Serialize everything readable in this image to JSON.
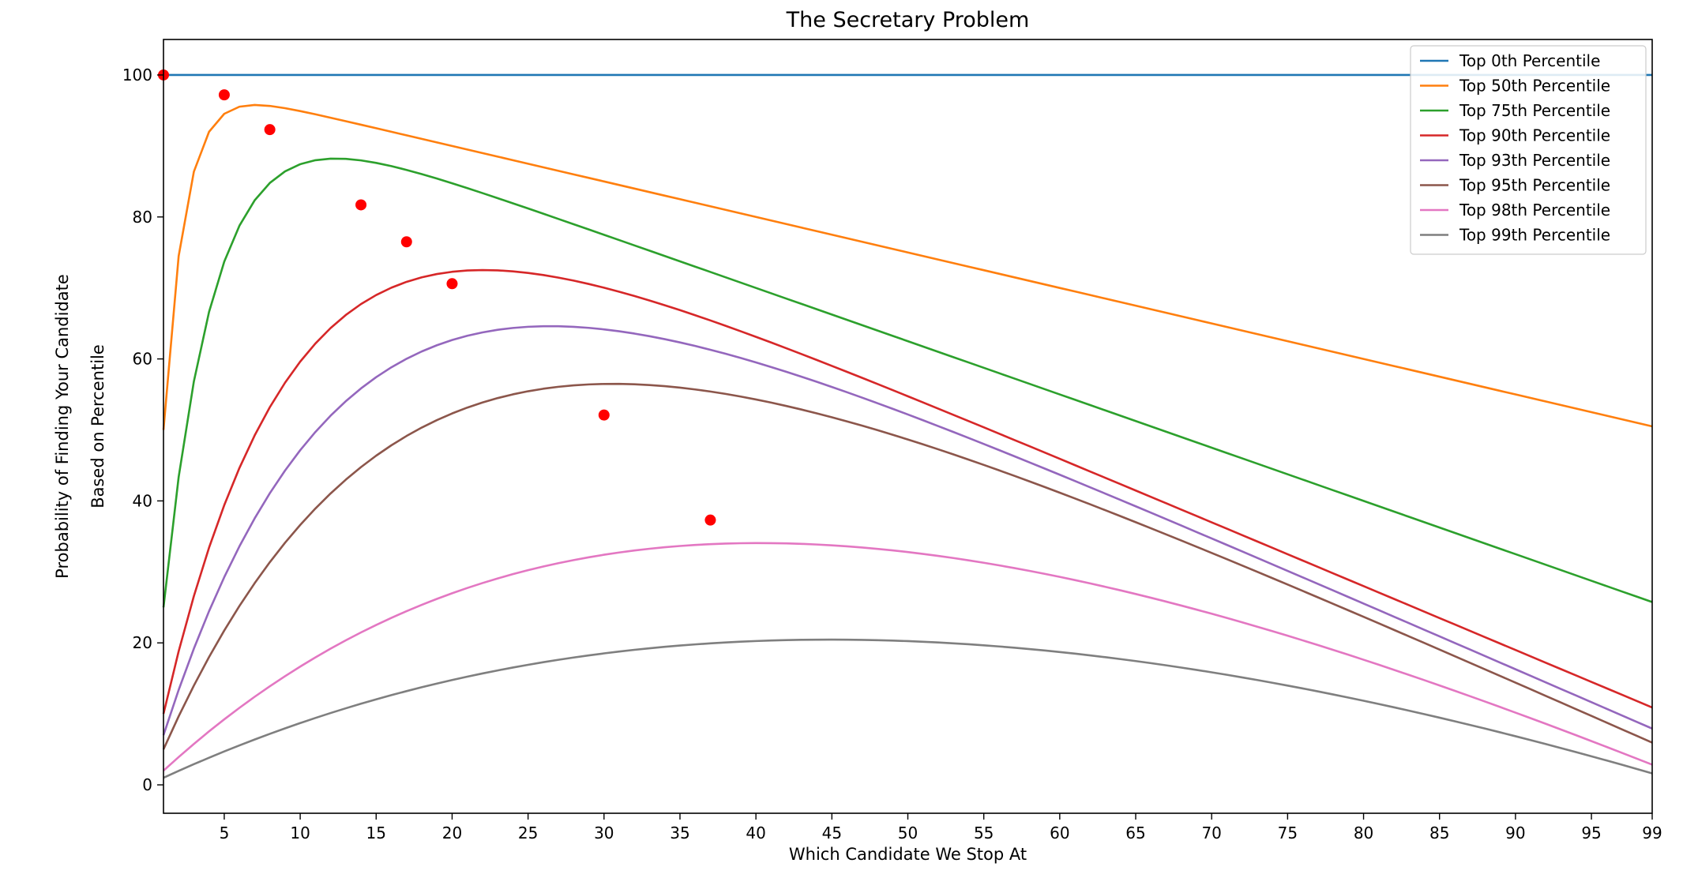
{
  "chart_data": {
    "type": "line",
    "title": "The Secretary Problem",
    "xlabel": "Which Candidate We Stop At",
    "ylabel_lines": [
      "Probability of Finding Your Candidate",
      "Based on Percentile"
    ],
    "xlim": [
      1,
      99
    ],
    "ylim": [
      -4,
      105
    ],
    "xticks": [
      5,
      10,
      15,
      20,
      25,
      30,
      35,
      40,
      45,
      50,
      55,
      60,
      65,
      70,
      75,
      80,
      85,
      90,
      95,
      99
    ],
    "yticks": [
      0,
      20,
      40,
      60,
      80,
      100
    ],
    "grid": false,
    "legend_position": "top-right",
    "series": [
      {
        "name": "Top 0th Percentile",
        "color": "#1f77b4",
        "p": 0.0,
        "peak": {
          "x": 1,
          "y": 100.0
        }
      },
      {
        "name": "Top 50th Percentile",
        "color": "#ff7f0e",
        "p": 0.5,
        "peak": {
          "x": 5,
          "y": 97.2
        }
      },
      {
        "name": "Top 75th Percentile",
        "color": "#2ca02c",
        "p": 0.75,
        "peak": {
          "x": 8,
          "y": 92.3
        }
      },
      {
        "name": "Top 90th Percentile",
        "color": "#d62728",
        "p": 0.9,
        "peak": {
          "x": 14,
          "y": 81.7
        }
      },
      {
        "name": "Top 93th Percentile",
        "color": "#9467bd",
        "p": 0.93,
        "peak": {
          "x": 17,
          "y": 76.5
        }
      },
      {
        "name": "Top 95th Percentile",
        "color": "#8c564b",
        "p": 0.95,
        "peak": {
          "x": 20,
          "y": 70.6
        }
      },
      {
        "name": "Top 98th Percentile",
        "color": "#e377c2",
        "p": 0.98,
        "peak": {
          "x": 30,
          "y": 52.1
        }
      },
      {
        "name": "Top 99th Percentile",
        "color": "#7f7f7f",
        "p": 0.99,
        "peak": {
          "x": 37,
          "y": 37.3
        }
      }
    ],
    "marker_color": "#ff0000"
  }
}
